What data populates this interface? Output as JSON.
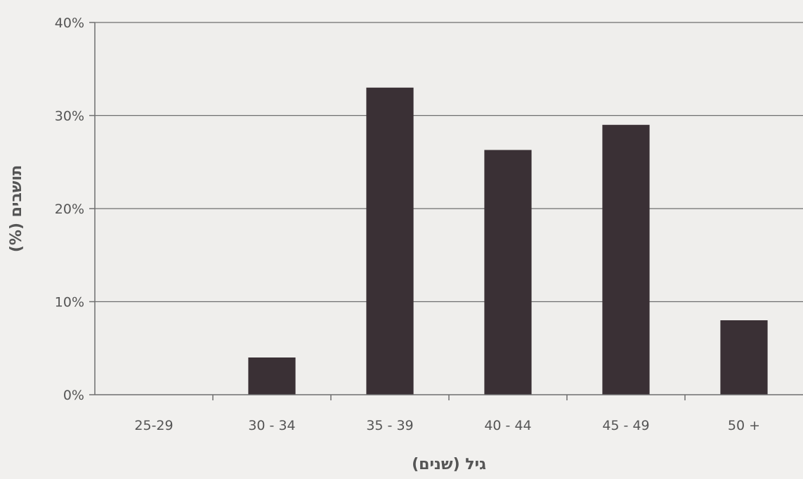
{
  "chart_data": {
    "type": "bar",
    "categories": [
      "25-29",
      "30 - 34",
      "35 - 39",
      "40 - 44",
      "45 - 49",
      "50 +"
    ],
    "values": [
      0,
      4,
      33,
      26.3,
      29,
      8
    ],
    "yticks": [
      "0%",
      "10%",
      "20%",
      "30%",
      "40%"
    ],
    "ylim": [
      0,
      40
    ],
    "xlabel": "גיל (שנים)",
    "ylabel": "תושבים (%)",
    "grid": true,
    "bar_color": "#3a3035",
    "gridline_color": "#6e6e6e",
    "background_color": "#f1f0ee"
  }
}
